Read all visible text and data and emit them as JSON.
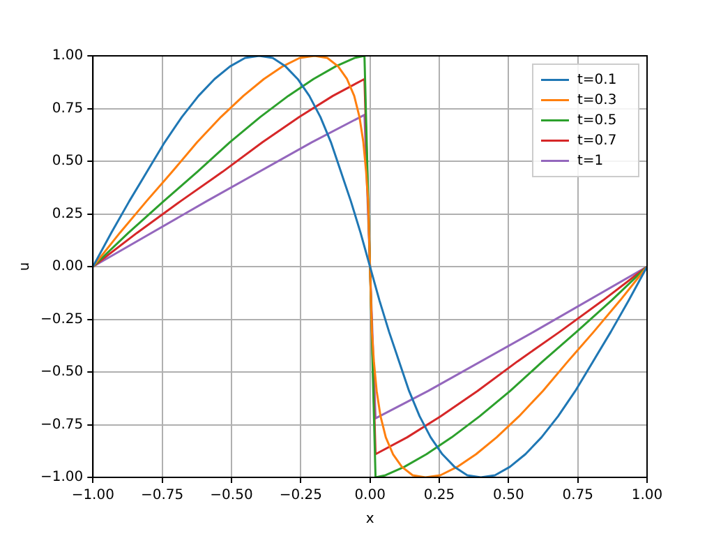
{
  "chart_data": {
    "type": "line",
    "xlabel": "x",
    "ylabel": "u",
    "xlim": [
      -1,
      1
    ],
    "ylim": [
      -1,
      1
    ],
    "xticks": [
      {
        "value": -1,
        "label": "−1.00"
      },
      {
        "value": -0.75,
        "label": "−0.75"
      },
      {
        "value": -0.5,
        "label": "−0.50"
      },
      {
        "value": -0.25,
        "label": "−0.25"
      },
      {
        "value": 0,
        "label": "0.00"
      },
      {
        "value": 0.25,
        "label": "0.25"
      },
      {
        "value": 0.5,
        "label": "0.50"
      },
      {
        "value": 0.75,
        "label": "0.75"
      },
      {
        "value": 1,
        "label": "1.00"
      }
    ],
    "yticks": [
      {
        "value": -1,
        "label": "−1.00"
      },
      {
        "value": -0.75,
        "label": "−0.75"
      },
      {
        "value": -0.5,
        "label": "−0.50"
      },
      {
        "value": -0.25,
        "label": "−0.25"
      },
      {
        "value": 0,
        "label": "0.00"
      },
      {
        "value": 0.25,
        "label": "0.25"
      },
      {
        "value": 0.5,
        "label": "0.50"
      },
      {
        "value": 0.75,
        "label": "0.75"
      },
      {
        "value": 1,
        "label": "1.00"
      }
    ],
    "grid": true,
    "legend": "top right",
    "marker": "none",
    "line_style": "solid",
    "series": [
      {
        "name": "t=0.1",
        "color": "#1f77b4",
        "x": [
          -1,
          -0.934,
          -0.869,
          -0.805,
          -0.741,
          -0.679,
          -0.619,
          -0.561,
          -0.505,
          -0.451,
          -0.4,
          -0.351,
          -0.305,
          -0.261,
          -0.219,
          -0.179,
          -0.141,
          -0.105,
          -0.069,
          -0.034,
          0,
          0.034,
          0.069,
          0.105,
          0.141,
          0.179,
          0.219,
          0.261,
          0.305,
          0.351,
          0.4,
          0.451,
          0.505,
          0.561,
          0.619,
          0.679,
          0.741,
          0.805,
          0.869,
          0.934,
          1
        ],
        "values": [
          0,
          0.16,
          0.31,
          0.45,
          0.59,
          0.71,
          0.81,
          0.89,
          0.95,
          0.99,
          1,
          0.99,
          0.95,
          0.89,
          0.81,
          0.71,
          0.59,
          0.45,
          0.31,
          0.16,
          0,
          -0.16,
          -0.31,
          -0.45,
          -0.59,
          -0.71,
          -0.81,
          -0.89,
          -0.95,
          -0.99,
          -1,
          -0.99,
          -0.95,
          -0.89,
          -0.81,
          -0.71,
          -0.59,
          -0.45,
          -0.31,
          -0.16,
          0
        ]
      },
      {
        "name": "t=0.3",
        "color": "#ff7f0e",
        "x": [
          -1,
          -0.903,
          -0.807,
          -0.714,
          -0.624,
          -0.538,
          -0.457,
          -0.383,
          -0.315,
          -0.254,
          -0.2,
          -0.154,
          -0.115,
          -0.083,
          -0.057,
          -0.038,
          -0.024,
          -0.014,
          -0.007,
          0,
          0.007,
          0.014,
          0.024,
          0.038,
          0.057,
          0.083,
          0.115,
          0.154,
          0.2,
          0.254,
          0.315,
          0.383,
          0.457,
          0.538,
          0.624,
          0.714,
          0.807,
          0.903,
          1
        ],
        "values": [
          0,
          0.16,
          0.31,
          0.45,
          0.59,
          0.71,
          0.81,
          0.89,
          0.95,
          0.99,
          1,
          0.99,
          0.95,
          0.89,
          0.81,
          0.71,
          0.59,
          0.45,
          0.31,
          0,
          -0.31,
          -0.45,
          -0.59,
          -0.71,
          -0.81,
          -0.89,
          -0.95,
          -0.99,
          -1,
          -0.99,
          -0.95,
          -0.89,
          -0.81,
          -0.71,
          -0.59,
          -0.45,
          -0.31,
          -0.16,
          0
        ]
      },
      {
        "name": "t=0.5",
        "color": "#2ca02c",
        "x": [
          -1,
          -0.872,
          -0.745,
          -0.623,
          -0.506,
          -0.396,
          -0.295,
          -0.204,
          -0.124,
          -0.056,
          -0.02,
          0.02,
          0.056,
          0.124,
          0.204,
          0.295,
          0.396,
          0.506,
          0.623,
          0.745,
          0.872,
          1
        ],
        "values": [
          0,
          0.16,
          0.31,
          0.45,
          0.59,
          0.71,
          0.81,
          0.89,
          0.95,
          0.99,
          1,
          -1,
          -0.99,
          -0.95,
          -0.89,
          -0.81,
          -0.71,
          -0.59,
          -0.45,
          -0.31,
          -0.16,
          0
        ]
      },
      {
        "name": "t=0.7",
        "color": "#d62728",
        "x": [
          -1,
          -0.841,
          -0.684,
          -0.532,
          -0.388,
          -0.255,
          -0.134,
          -0.02,
          0.02,
          0.134,
          0.255,
          0.388,
          0.532,
          0.684,
          0.841,
          1
        ],
        "values": [
          0,
          0.16,
          0.31,
          0.45,
          0.59,
          0.71,
          0.81,
          0.89,
          -0.89,
          -0.81,
          -0.71,
          -0.59,
          -0.45,
          -0.31,
          -0.16,
          0
        ]
      },
      {
        "name": "t=1",
        "color": "#9467bd",
        "x": [
          -1,
          -0.59,
          -0.21,
          -0.02,
          0.02,
          0.21,
          0.59,
          1
        ],
        "values": [
          0,
          0.31,
          0.59,
          0.72,
          -0.72,
          -0.59,
          -0.31,
          0
        ]
      }
    ]
  }
}
